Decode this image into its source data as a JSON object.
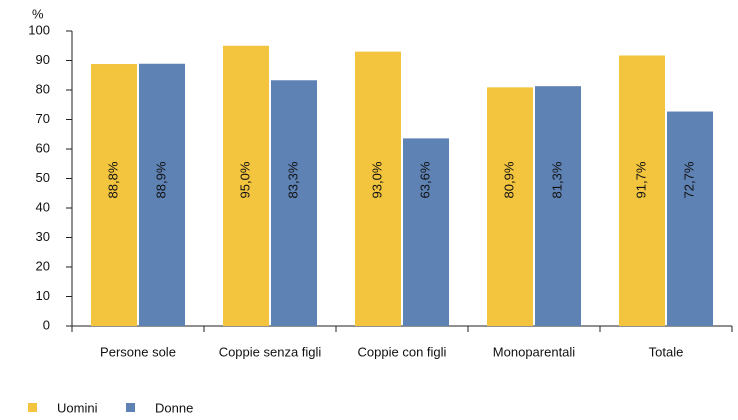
{
  "chart_data": {
    "type": "bar",
    "y_label": "%",
    "categories": [
      "Persone sole",
      "Coppie senza figli",
      "Coppie con figli",
      "Monoparentali",
      "Totale"
    ],
    "series": [
      {
        "name": "Uomini",
        "color": "#f3c53f",
        "values": [
          88.8,
          95.0,
          93.0,
          80.9,
          91.7
        ],
        "value_labels": [
          "88,8%",
          "95,0%",
          "93,0%",
          "80,9%",
          "91,7%"
        ]
      },
      {
        "name": "Donne",
        "color": "#5e82b4",
        "values": [
          88.9,
          83.3,
          63.6,
          81.3,
          72.7
        ],
        "value_labels": [
          "88,9%",
          "83,3%",
          "63,6%",
          "81,3%",
          "72,7%"
        ]
      }
    ],
    "ylim": [
      0,
      100
    ],
    "yticks": [
      0,
      10,
      20,
      30,
      40,
      50,
      60,
      70,
      80,
      90,
      100
    ],
    "grid": false,
    "legend": "bottom-left"
  }
}
